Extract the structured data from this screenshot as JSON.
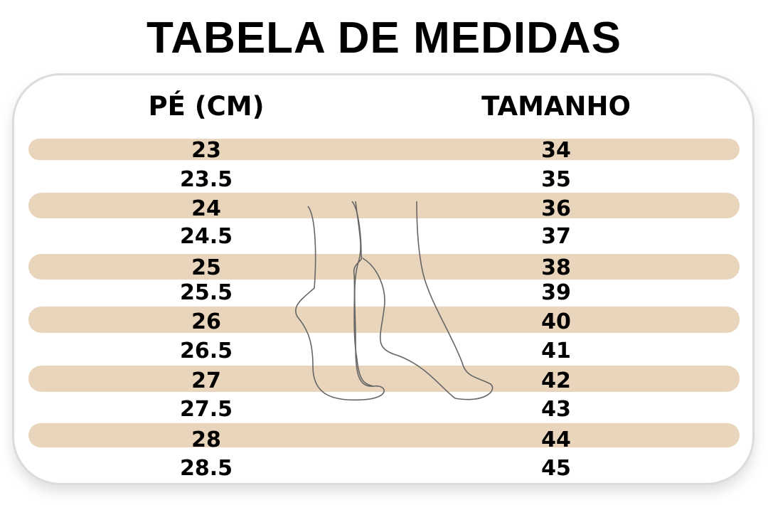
{
  "title": "TABELA DE MEDIDAS",
  "headers": {
    "foot_cm": "PÉ (CM)",
    "size": "TAMANHO"
  },
  "band_color": "#e8d5bb",
  "rows": [
    {
      "cm": "23",
      "size": "34"
    },
    {
      "cm": "23.5",
      "size": "35"
    },
    {
      "cm": "24",
      "size": "36"
    },
    {
      "cm": "24.5",
      "size": "37"
    },
    {
      "cm": "25",
      "size": "38"
    },
    {
      "cm": "25.5",
      "size": "39"
    },
    {
      "cm": "26",
      "size": "40"
    },
    {
      "cm": "26.5",
      "size": "41"
    },
    {
      "cm": "27",
      "size": "42"
    },
    {
      "cm": "27.5",
      "size": "43"
    },
    {
      "cm": "28",
      "size": "44"
    },
    {
      "cm": "28.5",
      "size": "45"
    }
  ],
  "illustration": "feet-outline-icon"
}
